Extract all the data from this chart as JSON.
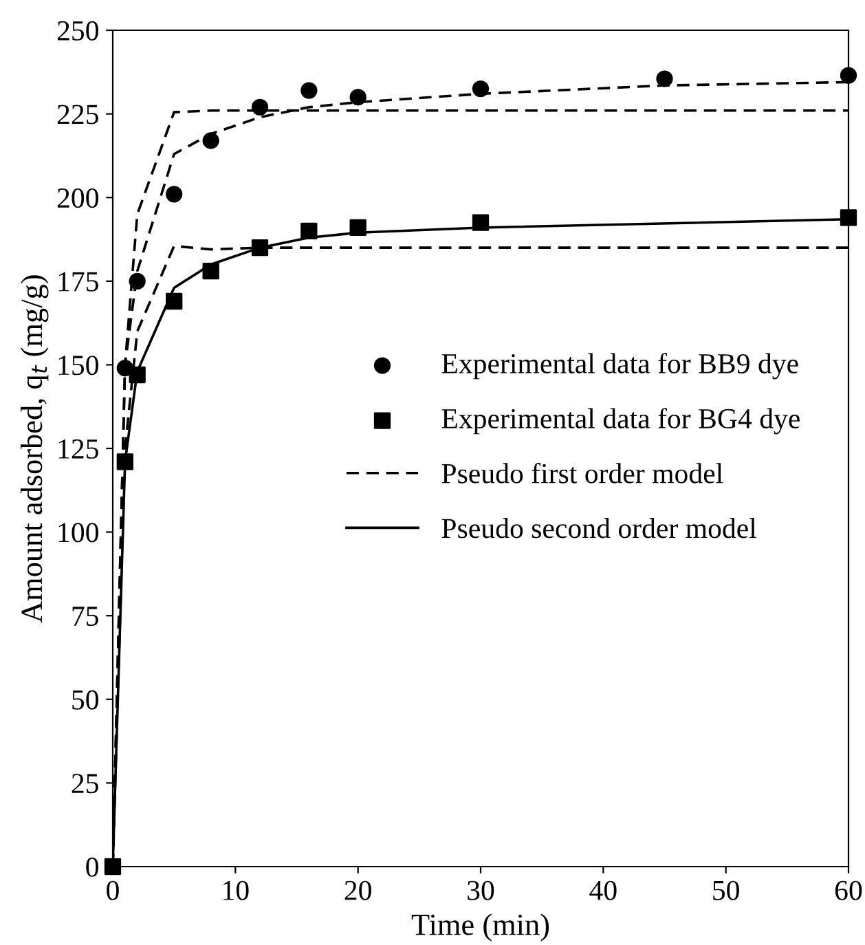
{
  "chart_data": {
    "type": "line",
    "xlabel": "Time (min)",
    "ylabel": "Amount adsorbed, q$_{t}$ (mg/g)",
    "xlim": [
      0,
      60
    ],
    "xticks": [
      0,
      10,
      20,
      30,
      40,
      50,
      60
    ],
    "ylim": [
      0,
      250
    ],
    "yticks": [
      0,
      25,
      50,
      75,
      100,
      125,
      150,
      175,
      200,
      225,
      250
    ],
    "grid": false,
    "legend": "right",
    "series": [
      {
        "name": "Experimental data for BB9 dye",
        "type": "scatter",
        "marker": "circle",
        "color": "#000000",
        "x": [
          1,
          2,
          5,
          8,
          12,
          16,
          20,
          30,
          45,
          60
        ],
        "values": [
          149,
          175,
          201,
          217,
          227,
          232,
          230,
          232.5,
          235.5,
          236.5
        ]
      },
      {
        "name": "Experimental data for BG4 dye",
        "type": "scatter",
        "marker": "square",
        "color": "#000000",
        "x": [
          0,
          1,
          2,
          5,
          8,
          12,
          16,
          20,
          30,
          60
        ],
        "values": [
          0,
          121,
          147,
          169,
          178,
          185,
          190,
          191,
          192.5,
          194
        ]
      },
      {
        "name": "Pseudo first order model",
        "line_style": "dashed",
        "color": "#000000",
        "x": [
          0,
          1,
          2,
          5,
          8,
          12,
          16,
          20,
          30,
          45,
          60
        ],
        "values": [
          0,
          150,
          195,
          225.5,
          226,
          226,
          226,
          226,
          226,
          226,
          226
        ]
      },
      {
        "line_style": "dashed",
        "color": "#000000",
        "x": [
          0,
          1,
          2,
          5,
          8,
          12,
          16,
          20,
          30,
          60
        ],
        "values": [
          0,
          125,
          160,
          185.5,
          184.5,
          185,
          185,
          185,
          185,
          185
        ]
      },
      {
        "name": "Pseudo second order model",
        "line_style": "solid",
        "color": "#000000",
        "x": [
          0,
          1,
          2,
          5,
          8,
          12,
          16,
          20,
          30,
          60
        ],
        "values": [
          0,
          121,
          148,
          173,
          180,
          185,
          188,
          189.5,
          191,
          193.5
        ]
      },
      {
        "line_style": "dashed",
        "color": "#000000",
        "x": [
          0,
          1,
          2,
          5,
          8,
          12,
          16,
          20,
          30,
          45,
          60
        ],
        "values": [
          0,
          150,
          178,
          213,
          219,
          224,
          227,
          228.5,
          231,
          233.5,
          234.5
        ]
      }
    ]
  }
}
